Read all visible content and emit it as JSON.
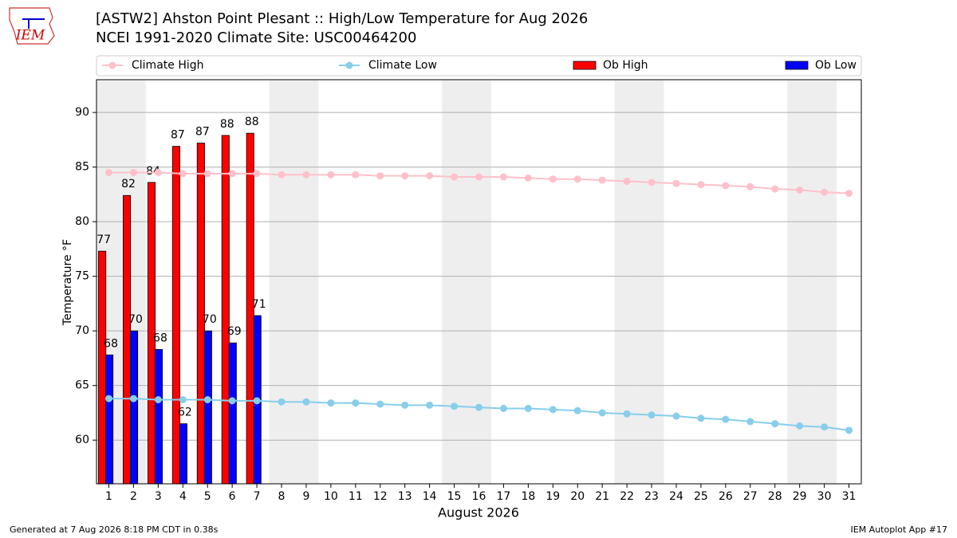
{
  "chart_data": {
    "type": "bar",
    "title": "[ASTW2] Ahston Point Plesant :: High/Low Temperature for Aug 2026",
    "subtitle": "NCEI 1991-2020 Climate Site: USC00464200",
    "ylabel": "Temperature °F",
    "xlabel": "August 2026",
    "logo_text": "IEM",
    "footer_left": "Generated at 7 Aug 2026 8:18 PM CDT in 0.38s",
    "footer_right": "IEM Autoplot App #17",
    "x": [
      1,
      2,
      3,
      4,
      5,
      6,
      7,
      8,
      9,
      10,
      11,
      12,
      13,
      14,
      15,
      16,
      17,
      18,
      19,
      20,
      21,
      22,
      23,
      24,
      25,
      26,
      27,
      28,
      29,
      30,
      31
    ],
    "xlim": [
      0.5,
      31.5
    ],
    "xticks": [
      1,
      2,
      3,
      4,
      5,
      6,
      7,
      8,
      9,
      10,
      11,
      12,
      13,
      14,
      15,
      16,
      17,
      18,
      19,
      20,
      21,
      22,
      23,
      24,
      25,
      26,
      27,
      28,
      29,
      30,
      31
    ],
    "ylim": [
      56,
      93
    ],
    "yticks": [
      60,
      65,
      70,
      75,
      80,
      85,
      90
    ],
    "grid": true,
    "shaded_days": [
      1,
      2,
      8,
      9,
      15,
      16,
      22,
      23,
      29,
      30
    ],
    "series": [
      {
        "name": "Climate High",
        "kind": "line",
        "color": "#ffc0cb",
        "values": [
          84.5,
          84.5,
          84.5,
          84.4,
          84.4,
          84.4,
          84.4,
          84.3,
          84.3,
          84.3,
          84.3,
          84.2,
          84.2,
          84.2,
          84.1,
          84.1,
          84.1,
          84.0,
          83.9,
          83.9,
          83.8,
          83.7,
          83.6,
          83.5,
          83.4,
          83.3,
          83.2,
          83.0,
          82.9,
          82.7,
          82.6
        ]
      },
      {
        "name": "Climate Low",
        "kind": "line",
        "color": "#87ceeb",
        "values": [
          63.8,
          63.8,
          63.7,
          63.7,
          63.7,
          63.6,
          63.6,
          63.5,
          63.5,
          63.4,
          63.4,
          63.3,
          63.2,
          63.2,
          63.1,
          63.0,
          62.9,
          62.9,
          62.8,
          62.7,
          62.5,
          62.4,
          62.3,
          62.2,
          62.0,
          61.9,
          61.7,
          61.5,
          61.3,
          61.2,
          60.9
        ]
      },
      {
        "name": "Ob High",
        "kind": "bar",
        "color": "#ff0000",
        "values": [
          77.3,
          82.4,
          83.6,
          86.9,
          87.2,
          87.9,
          88.1,
          null,
          null,
          null,
          null,
          null,
          null,
          null,
          null,
          null,
          null,
          null,
          null,
          null,
          null,
          null,
          null,
          null,
          null,
          null,
          null,
          null,
          null,
          null,
          null
        ],
        "value_labels": [
          "77",
          "82",
          "84",
          "87",
          "87",
          "88",
          "88",
          null,
          null,
          null,
          null,
          null,
          null,
          null,
          null,
          null,
          null,
          null,
          null,
          null,
          null,
          null,
          null,
          null,
          null,
          null,
          null,
          null,
          null,
          null,
          null
        ]
      },
      {
        "name": "Ob Low",
        "kind": "bar",
        "color": "#0000ff",
        "values": [
          67.8,
          70.0,
          68.3,
          61.5,
          70.0,
          68.9,
          71.4,
          null,
          null,
          null,
          null,
          null,
          null,
          null,
          null,
          null,
          null,
          null,
          null,
          null,
          null,
          null,
          null,
          null,
          null,
          null,
          null,
          null,
          null,
          null,
          null
        ],
        "value_labels": [
          "68",
          "70",
          "68",
          "62",
          "70",
          "69",
          "71",
          null,
          null,
          null,
          null,
          null,
          null,
          null,
          null,
          null,
          null,
          null,
          null,
          null,
          null,
          null,
          null,
          null,
          null,
          null,
          null,
          null,
          null,
          null,
          null
        ]
      }
    ]
  }
}
